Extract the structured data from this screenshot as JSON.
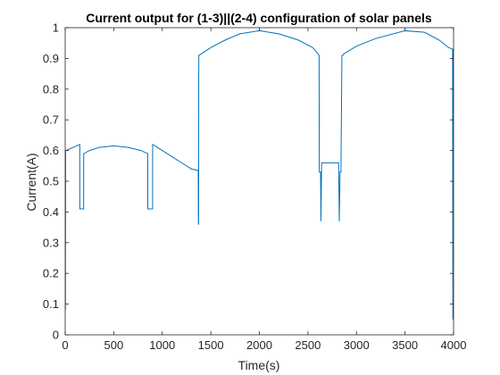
{
  "chart_data": {
    "type": "line",
    "title": "Current output for (1-3)||(2-4) configuration of solar panels",
    "xlabel": "Time(s)",
    "ylabel": "Current(A)",
    "xlim": [
      0,
      4000
    ],
    "ylim": [
      0,
      1
    ],
    "x_ticks": [
      "0",
      "500",
      "1000",
      "1500",
      "2000",
      "2500",
      "3000",
      "3500",
      "4000"
    ],
    "y_ticks": [
      "0",
      "0.1",
      "0.2",
      "0.3",
      "0.4",
      "0.5",
      "0.6",
      "0.7",
      "0.8",
      "0.9",
      "1"
    ],
    "grid": false,
    "legend": "none",
    "series": [
      {
        "color": "#0072BD",
        "x": [
          0,
          2,
          4,
          10,
          150,
          151,
          152,
          190,
          191,
          192,
          250,
          350,
          500,
          650,
          780,
          850,
          851,
          852,
          900,
          901,
          902,
          1000,
          1100,
          1200,
          1300,
          1370,
          1372,
          1374,
          1375,
          1376,
          1378,
          1500,
          1650,
          1800,
          2000,
          2200,
          2400,
          2550,
          2615,
          2617,
          2619,
          2621,
          2623,
          2625,
          2630,
          2634,
          2640,
          2641,
          2642,
          2650,
          2660,
          2670,
          2671,
          2672,
          2680,
          2815,
          2816,
          2817,
          2823,
          2831,
          2832,
          2833,
          2840,
          2850,
          2852,
          2856,
          2858,
          2860,
          2870,
          3000,
          3200,
          3500,
          3700,
          3850,
          3950,
          3990,
          3993,
          3996,
          4000
        ],
        "y": [
          0.18,
          0.08,
          0.6,
          0.6,
          0.62,
          0.41,
          0.41,
          0.41,
          0.59,
          0.59,
          0.6,
          0.61,
          0.615,
          0.61,
          0.6,
          0.59,
          0.41,
          0.41,
          0.41,
          0.62,
          0.62,
          0.6,
          0.58,
          0.56,
          0.54,
          0.535,
          0.36,
          0.36,
          0.7,
          0.91,
          0.91,
          0.935,
          0.96,
          0.98,
          0.99,
          0.98,
          0.96,
          0.935,
          0.91,
          0.53,
          0.53,
          0.53,
          0.53,
          0.53,
          0.53,
          0.37,
          0.53,
          0.56,
          0.56,
          0.56,
          0.56,
          0.56,
          0.56,
          0.56,
          0.56,
          0.56,
          0.56,
          0.53,
          0.37,
          0.53,
          0.53,
          0.53,
          0.53,
          0.91,
          0.91,
          0.91,
          0.91,
          0.91,
          0.915,
          0.94,
          0.965,
          0.99,
          0.985,
          0.96,
          0.935,
          0.93,
          0.05,
          0.93,
          0.93
        ]
      }
    ]
  }
}
